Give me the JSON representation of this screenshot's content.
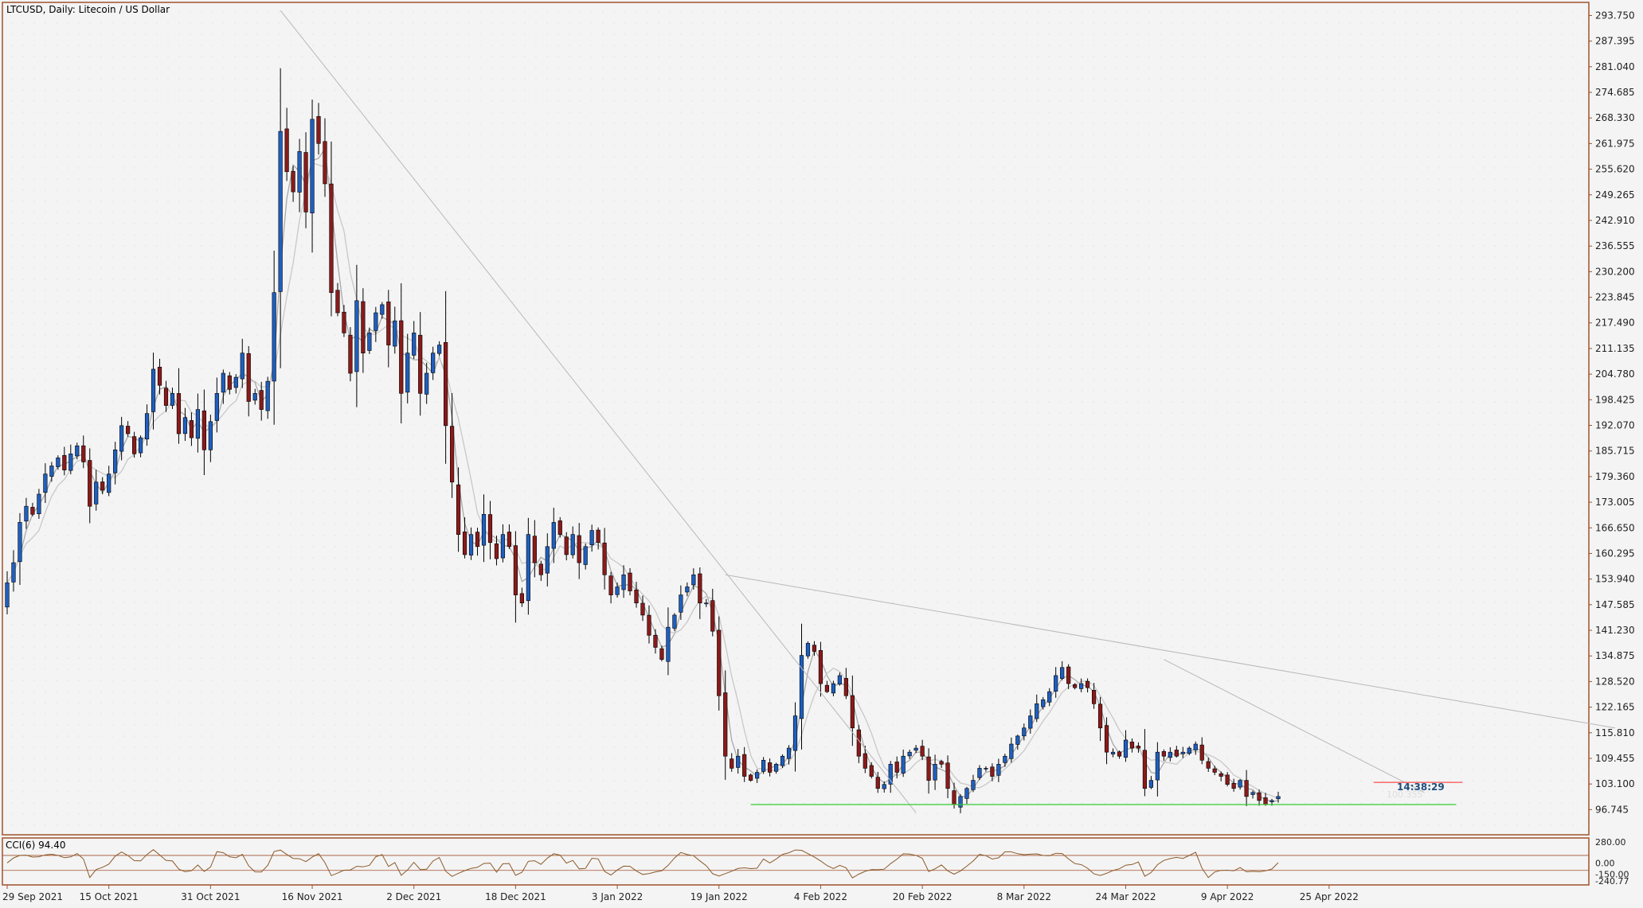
{
  "window": {
    "title": "LTCUSD, Daily:  Litecoin / US Dollar",
    "countdown": "14:38:29",
    "bid_label": "100.355"
  },
  "colors": {
    "background": "#f4f4f4",
    "frame": "#a0522d",
    "bull_body": "#1f5fbf",
    "bear_body": "#8b1a1a",
    "wick": "#000000",
    "ma_fast": "#a8a8a8",
    "ma_slow": "#c8c8c8",
    "trendline": "#b8b8b8",
    "support_line": "#33cc33",
    "resistance_line": "#ff4d4d",
    "cci_line": "#8b5a2b",
    "cci_levels": "#a0522d",
    "countdown_text": "#1f4f7f"
  },
  "indicator": {
    "label": "CCI(6) 94.40",
    "axis_labels": [
      "280.00",
      "0.00",
      "-150.00",
      "-240.77"
    ]
  },
  "chart_data": {
    "type": "candlestick",
    "symbol": "LTCUSD",
    "timeframe": "Daily",
    "ylim": [
      90.5,
      297
    ],
    "y_ticks": [
      "293.750",
      "287.395",
      "281.040",
      "274.685",
      "268.330",
      "261.975",
      "255.620",
      "249.265",
      "242.910",
      "236.555",
      "230.200",
      "223.845",
      "217.490",
      "211.135",
      "204.780",
      "198.425",
      "192.070",
      "185.715",
      "179.360",
      "173.005",
      "166.650",
      "160.295",
      "153.940",
      "147.585",
      "141.230",
      "134.875",
      "128.520",
      "122.165",
      "115.810",
      "109.455",
      "103.100",
      "96.745"
    ],
    "x_ticks": [
      {
        "label": "29 Sep 2021",
        "index": 0
      },
      {
        "label": "15 Oct 2021",
        "index": 16
      },
      {
        "label": "31 Oct 2021",
        "index": 32
      },
      {
        "label": "16 Nov 2021",
        "index": 48
      },
      {
        "label": "2 Dec 2021",
        "index": 64
      },
      {
        "label": "18 Dec 2021",
        "index": 80
      },
      {
        "label": "3 Jan 2022",
        "index": 96
      },
      {
        "label": "19 Jan 2022",
        "index": 112
      },
      {
        "label": "4 Feb 2022",
        "index": 128
      },
      {
        "label": "20 Feb 2022",
        "index": 144
      },
      {
        "label": "8 Mar 2022",
        "index": 160
      },
      {
        "label": "24 Mar 2022",
        "index": 176
      },
      {
        "label": "9 Apr 2022",
        "index": 192
      },
      {
        "label": "25 Apr 2022",
        "index": 208
      }
    ],
    "closes": [
      153,
      158,
      168,
      172,
      170,
      175,
      180,
      182,
      184,
      181,
      185,
      187,
      183,
      172,
      178,
      176,
      180,
      186,
      192,
      190,
      185,
      189,
      195,
      206,
      202,
      197,
      200,
      190,
      194,
      189,
      196,
      186,
      193,
      200,
      205,
      201,
      204,
      210,
      198,
      200,
      196,
      203,
      225,
      265,
      255,
      250,
      260,
      245,
      268,
      262,
      252,
      225,
      220,
      215,
      205,
      223,
      210,
      215,
      220,
      222,
      212,
      218,
      200,
      210,
      215,
      200,
      205,
      210,
      212,
      192,
      178,
      165,
      160,
      165,
      162,
      170,
      163,
      159,
      165,
      162,
      150,
      148,
      165,
      158,
      155,
      162,
      168,
      165,
      160,
      165,
      158,
      162,
      166,
      163,
      155,
      150,
      152,
      155,
      151,
      148,
      145,
      140,
      137,
      134,
      142,
      145,
      150,
      152,
      155,
      148,
      148,
      141,
      125,
      110,
      107,
      110,
      105,
      104,
      106,
      109,
      106,
      108,
      110,
      112,
      120,
      135,
      138,
      136,
      128,
      126,
      128,
      130,
      125,
      117,
      110,
      107,
      105,
      102,
      103,
      108,
      106,
      110,
      111,
      112,
      110,
      104,
      108,
      108,
      102,
      98,
      100,
      102,
      104,
      107,
      107,
      105,
      108,
      110,
      113,
      115,
      117,
      120,
      123,
      124,
      126,
      130,
      132,
      128,
      127,
      128,
      127,
      123,
      117,
      111,
      111,
      110,
      114,
      112,
      112,
      102,
      104,
      111,
      110,
      111,
      110,
      111,
      112,
      113,
      109,
      107,
      106,
      105,
      103,
      102,
      104,
      100,
      101,
      99,
      98,
      99,
      100
    ]
  },
  "drawings": [
    {
      "name": "long-trendline",
      "from": {
        "index": 43,
        "price": 295
      },
      "to": {
        "index": 143,
        "price": 96
      }
    },
    {
      "name": "lower-highs-trendline",
      "from": {
        "index": 113,
        "price": 155
      },
      "to": {
        "index": 253,
        "price": 117
      }
    },
    {
      "name": "recent-trendline",
      "from": {
        "index": 182,
        "price": 134
      },
      "to": {
        "index": 223,
        "price": 101
      }
    },
    {
      "name": "support-line",
      "from": {
        "index": 117,
        "price": 98
      },
      "to": {
        "index": 228,
        "price": 98
      }
    },
    {
      "name": "resistance-line",
      "from": {
        "index": 215,
        "price": 103.5
      },
      "to": {
        "index": 229,
        "price": 103.5
      }
    }
  ]
}
